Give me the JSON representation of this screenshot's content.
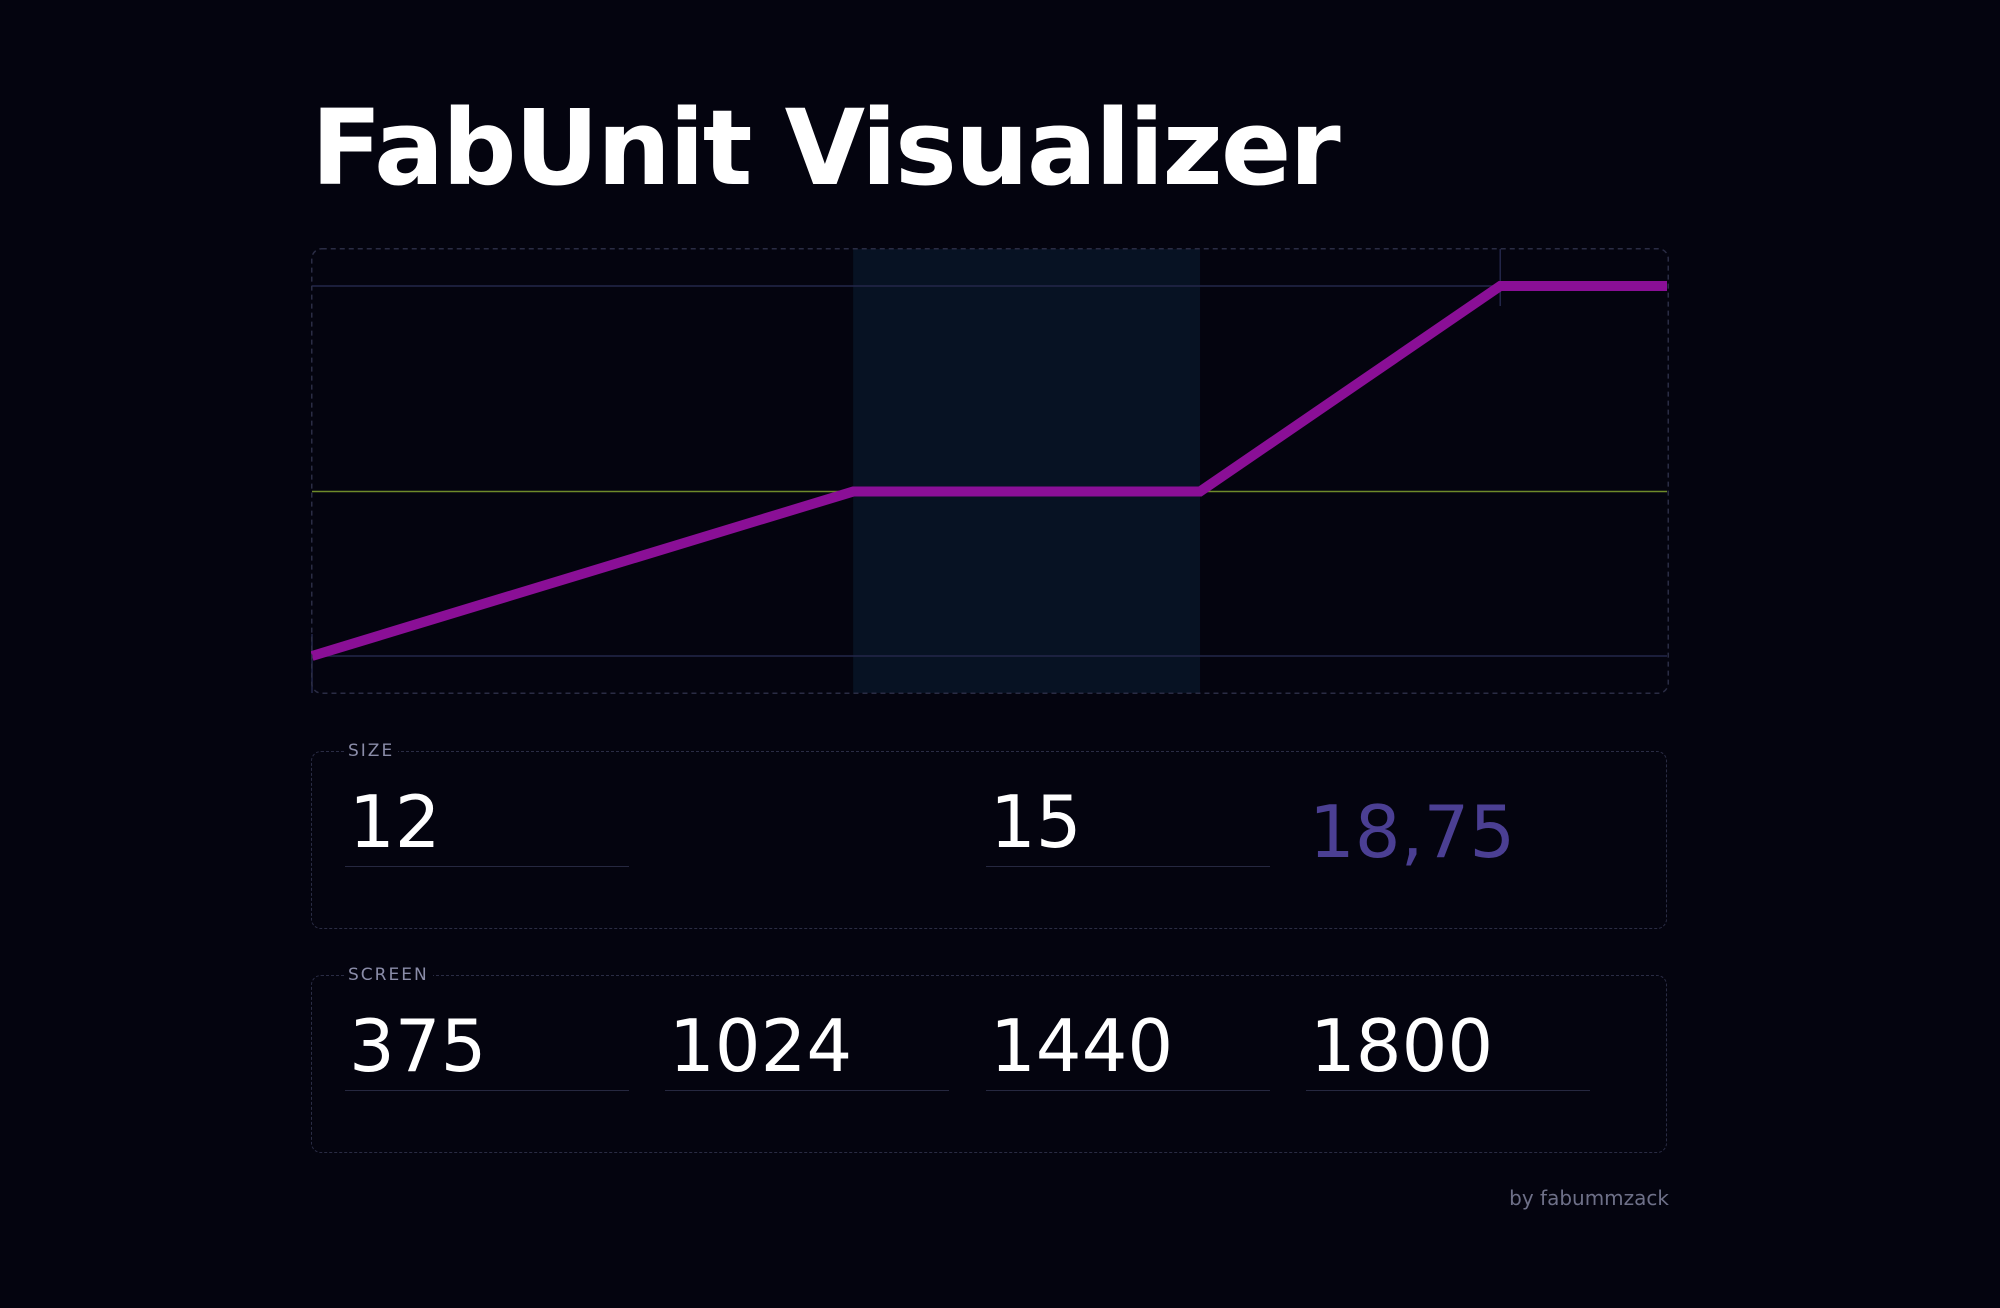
{
  "app": {
    "title": "FabUnit Visualizer"
  },
  "chart_data": {
    "type": "line",
    "x": [
      375,
      1024,
      1440,
      1800
    ],
    "y": [
      12,
      15,
      15,
      18.75
    ],
    "xlim": [
      375,
      2000
    ],
    "ylim": [
      12,
      18.75
    ],
    "highlight_band": [
      1024,
      1440
    ],
    "reference_line_y": 15,
    "colors": {
      "line": "#8a0f96",
      "reference": "#6f8a2a",
      "guides": "#23264a",
      "band": "#071223",
      "border": "#2a2c44"
    }
  },
  "size": {
    "legend": "SIZE",
    "min": "12",
    "mid": "15",
    "max_computed": "18,75",
    "computed_color": "#4b3f93"
  },
  "screen": {
    "legend": "SCREEN",
    "values": [
      "375",
      "1024",
      "1440",
      "1800"
    ]
  },
  "credit": "by fabummzack"
}
